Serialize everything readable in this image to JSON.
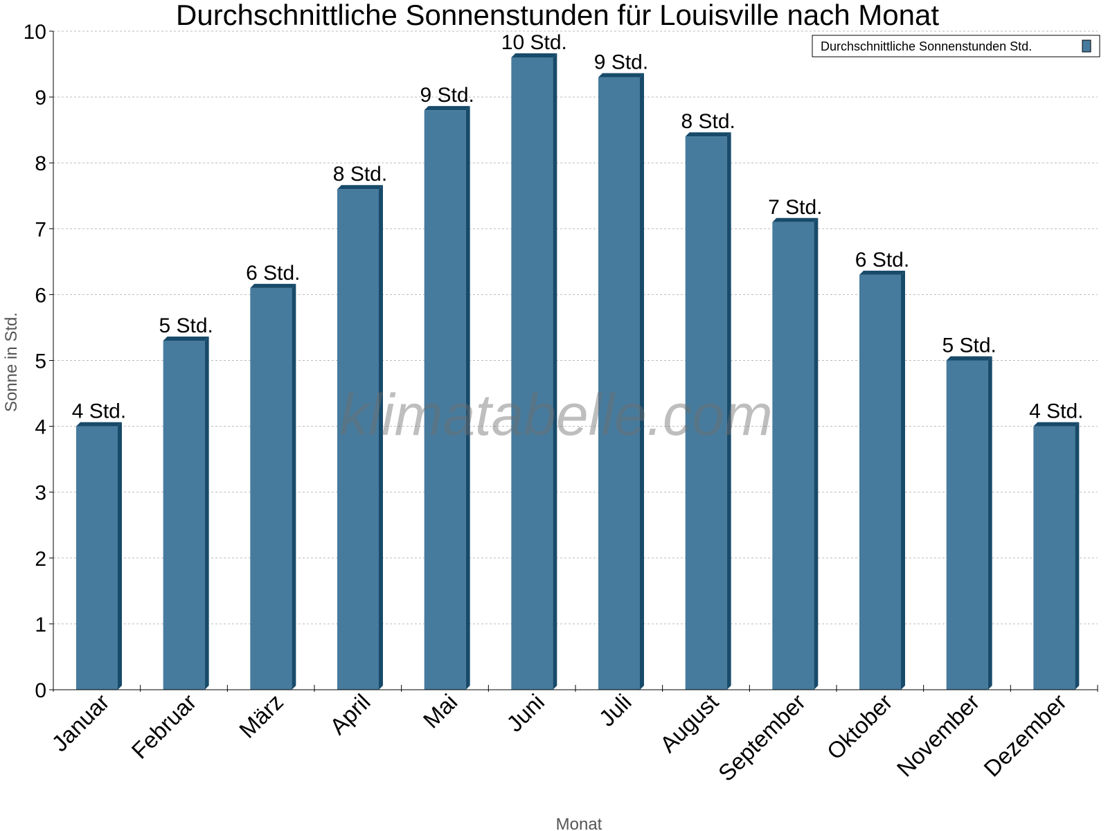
{
  "chart_data": {
    "type": "bar",
    "title": "Durchschnittliche Sonnenstunden für Louisville nach Monat",
    "xlabel": "Monat",
    "ylabel": "Sonne in Std.",
    "ylim": [
      0,
      10
    ],
    "yticks": [
      "0",
      "1",
      "2",
      "3",
      "4",
      "5",
      "6",
      "7",
      "8",
      "9",
      "10"
    ],
    "grid": true,
    "legend_position": "top-right",
    "categories": [
      "Januar",
      "Februar",
      "März",
      "April",
      "Mai",
      "Juni",
      "Juli",
      "August",
      "September",
      "Oktober",
      "November",
      "Dezember"
    ],
    "series": [
      {
        "name": "Durchschnittliche Sonnenstunden Std.",
        "color": "#467b9d",
        "side_color": "#184a6a",
        "values": [
          4.0,
          5.3,
          6.1,
          7.6,
          8.8,
          9.6,
          9.3,
          8.4,
          7.1,
          6.3,
          5.0,
          4.0
        ],
        "data_labels": [
          "4 Std.",
          "5 Std.",
          "6 Std.",
          "8 Std.",
          "9 Std.",
          "10 Std.",
          "9 Std.",
          "8 Std.",
          "7 Std.",
          "6 Std.",
          "5 Std.",
          "4 Std."
        ]
      }
    ],
    "watermark": "klimatabelle.com"
  }
}
